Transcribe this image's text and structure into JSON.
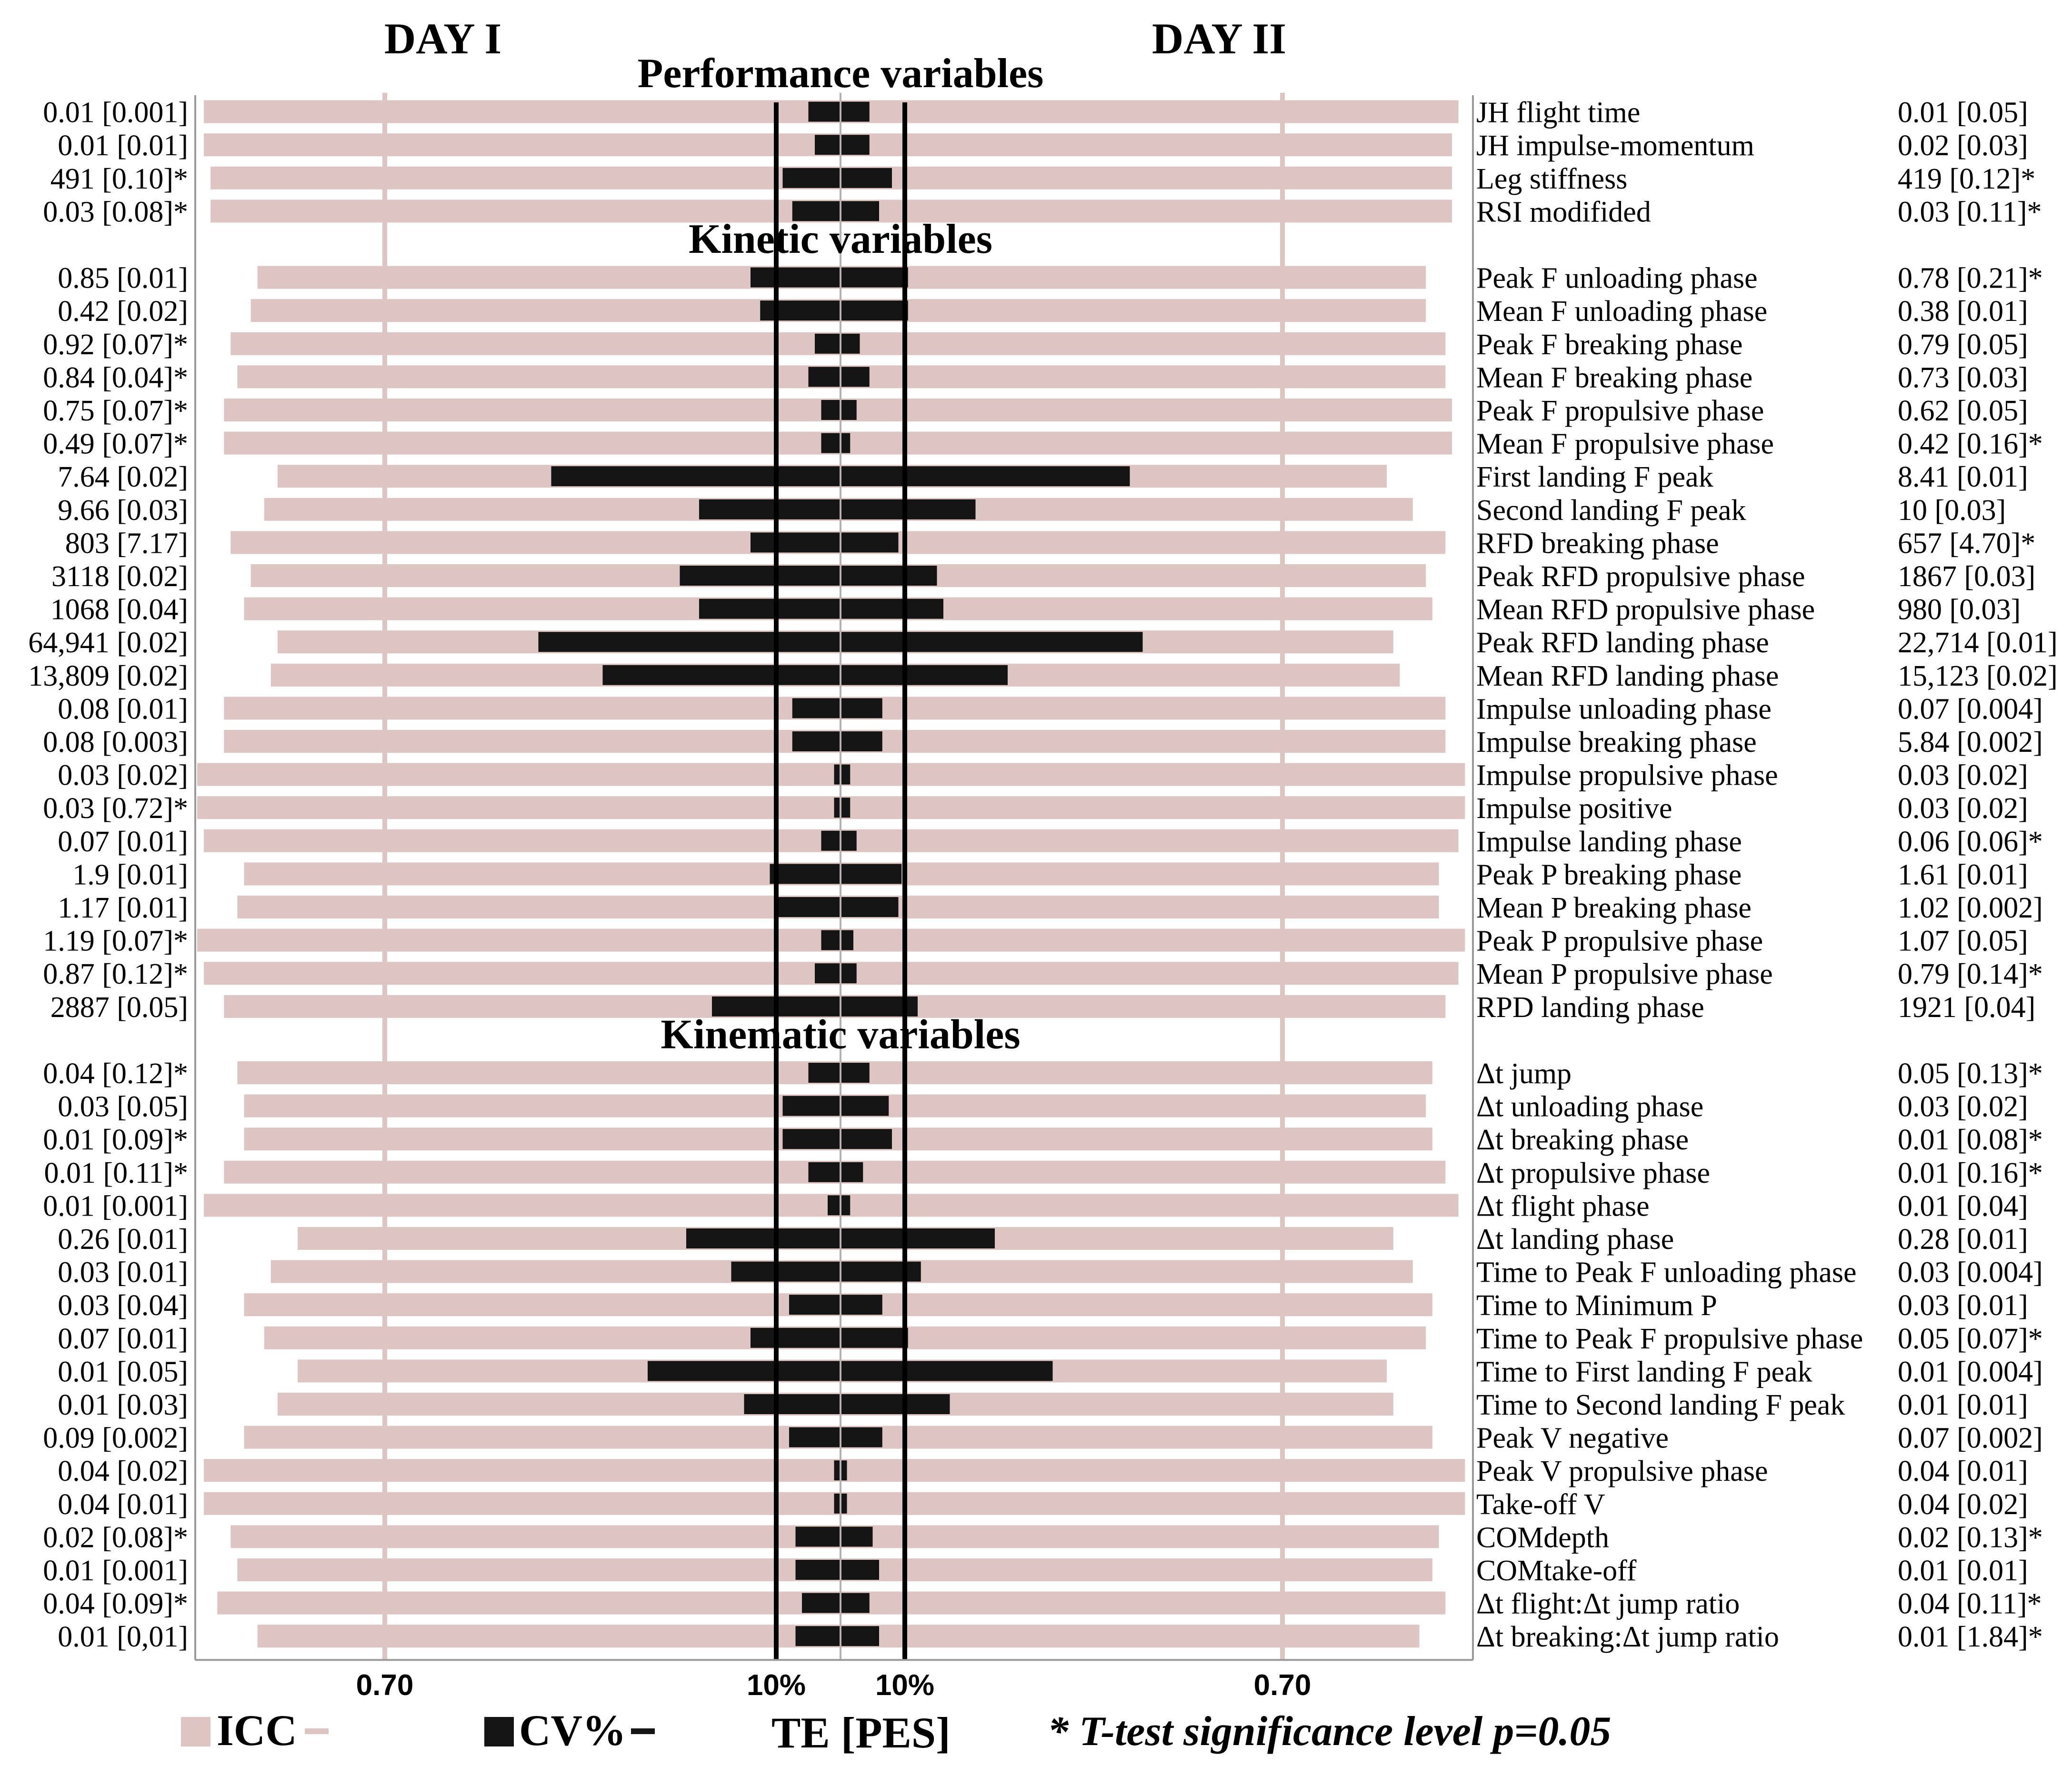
{
  "chart_data": {
    "type": "bar",
    "day_labels": [
      "DAY I",
      "DAY II"
    ],
    "tick_labels": {
      "icc_left": "0.70",
      "icc_right": "0.70",
      "cv_left": "10%",
      "cv_right": "10%"
    },
    "legend": {
      "icc": "ICC",
      "cv": "CV%",
      "te": "TE [PES]",
      "note": "* T-test significance level p=0.05"
    },
    "colors": {
      "icc": "#dcc5c3",
      "cv": "#141414",
      "axis": "#000000",
      "icc_ref": "#dcc5c3"
    },
    "scales": {
      "icc_ref": 0.7,
      "cv_ref_percent": 10
    },
    "groups": [
      {
        "title": "Performance variables",
        "rows": [
          {
            "label": "JH flight time",
            "day1_te": "0.01 [0.001]",
            "day2_te": "0.01 [0.05]",
            "icc1": 0.97,
            "icc2": 0.97,
            "cv1": 5,
            "cv2": 4.5
          },
          {
            "label": "JH impulse-momentum",
            "day1_te": "0.01 [0.01]",
            "day2_te": "0.02 [0.03]",
            "icc1": 0.97,
            "icc2": 0.96,
            "cv1": 4,
            "cv2": 4.5
          },
          {
            "label": "Leg stiffness",
            "day1_te": "491 [0.10]*",
            "day2_te": "419 [0.12]*",
            "icc1": 0.96,
            "icc2": 0.96,
            "cv1": 9,
            "cv2": 8
          },
          {
            "label": "RSI modifided",
            "day1_te": "0.03 [0.08]*",
            "day2_te": "0.03 [0.11]*",
            "icc1": 0.96,
            "icc2": 0.96,
            "cv1": 7.5,
            "cv2": 6
          }
        ]
      },
      {
        "title": "Kinetic variables",
        "rows": [
          {
            "label": "Peak F unloading phase",
            "day1_te": "0.85 [0.01]",
            "day2_te": "0.78 [0.21]*",
            "icc1": 0.89,
            "icc2": 0.92,
            "cv1": 14,
            "cv2": 10.5
          },
          {
            "label": "Mean F unloading phase",
            "day1_te": "0.42 [0.02]",
            "day2_te": "0.38 [0.01]",
            "icc1": 0.9,
            "icc2": 0.92,
            "cv1": 12.5,
            "cv2": 10.5
          },
          {
            "label": "Peak F breaking phase",
            "day1_te": "0.92 [0.07]*",
            "day2_te": "0.79 [0.05]",
            "icc1": 0.93,
            "icc2": 0.95,
            "cv1": 4,
            "cv2": 3
          },
          {
            "label": "Mean F breaking phase",
            "day1_te": "0.84 [0.04]*",
            "day2_te": "0.73 [0.03]",
            "icc1": 0.92,
            "icc2": 0.95,
            "cv1": 5,
            "cv2": 4.5
          },
          {
            "label": "Peak F propulsive phase",
            "day1_te": "0.75 [0.07]*",
            "day2_te": "0.62 [0.05]",
            "icc1": 0.94,
            "icc2": 0.96,
            "cv1": 3,
            "cv2": 2.5
          },
          {
            "label": "Mean F propulsive phase",
            "day1_te": "0.49 [0.07]*",
            "day2_te": "0.42 [0.16]*",
            "icc1": 0.94,
            "icc2": 0.96,
            "cv1": 3,
            "cv2": 1.5
          },
          {
            "label": "First landing F peak",
            "day1_te": "7.64 [0.02]",
            "day2_te": "8.41 [0.01]",
            "icc1": 0.86,
            "icc2": 0.86,
            "cv1": 45,
            "cv2": 45
          },
          {
            "label": "Second landing F peak",
            "day1_te": "9.66 [0.03]",
            "day2_te": "10 [0.03]",
            "icc1": 0.88,
            "icc2": 0.9,
            "cv1": 22,
            "cv2": 21
          },
          {
            "label": "RFD breaking phase",
            "day1_te": "803 [7.17]",
            "day2_te": "657 [4.70]*",
            "icc1": 0.93,
            "icc2": 0.95,
            "cv1": 14,
            "cv2": 9
          },
          {
            "label": "Peak RFD propulsive phase",
            "day1_te": "3118 [0.02]",
            "day2_te": "1867 [0.03]",
            "icc1": 0.9,
            "icc2": 0.92,
            "cv1": 25,
            "cv2": 15
          },
          {
            "label": "Mean RFD propulsive phase",
            "day1_te": "1068 [0.04]",
            "day2_te": "980 [0.03]",
            "icc1": 0.91,
            "icc2": 0.93,
            "cv1": 22,
            "cv2": 16
          },
          {
            "label": "Peak RFD landing phase",
            "day1_te": "64,941 [0.02]",
            "day2_te": "22,714 [0.01]",
            "icc1": 0.86,
            "icc2": 0.87,
            "cv1": 47,
            "cv2": 47
          },
          {
            "label": "Mean RFD landing phase",
            "day1_te": "13,809 [0.02]",
            "day2_te": "15,123 [0.02]",
            "icc1": 0.87,
            "icc2": 0.88,
            "cv1": 37,
            "cv2": 26
          },
          {
            "label": "Impulse unloading phase",
            "day1_te": "0.08 [0.01]",
            "day2_te": "0.07 [0.004]",
            "icc1": 0.94,
            "icc2": 0.95,
            "cv1": 7.5,
            "cv2": 6.5
          },
          {
            "label": "Impulse breaking phase",
            "day1_te": "0.08 [0.003]",
            "day2_te": "5.84 [0.002]",
            "icc1": 0.94,
            "icc2": 0.95,
            "cv1": 7.5,
            "cv2": 6.5
          },
          {
            "label": "Impulse propulsive phase",
            "day1_te": "0.03 [0.02]",
            "day2_te": "0.03 [0.02]",
            "icc1": 0.98,
            "icc2": 0.98,
            "cv1": 1,
            "cv2": 1.5
          },
          {
            "label": "Impulse positive",
            "day1_te": "0.03 [0.72]*",
            "day2_te": "0.03 [0.02]",
            "icc1": 0.98,
            "icc2": 0.98,
            "cv1": 1,
            "cv2": 1.5
          },
          {
            "label": "Impulse landing phase",
            "day1_te": "0.07 [0.01]",
            "day2_te": "0.06 [0.06]*",
            "icc1": 0.97,
            "icc2": 0.97,
            "cv1": 3,
            "cv2": 2.5
          },
          {
            "label": "Peak P breaking phase",
            "day1_te": "1.9 [0.01]",
            "day2_te": "1.61 [0.01]",
            "icc1": 0.91,
            "icc2": 0.94,
            "cv1": 11,
            "cv2": 9.5
          },
          {
            "label": "Mean P breaking phase",
            "day1_te": "1.17 [0.01]",
            "day2_te": "1.02 [0.002]",
            "icc1": 0.92,
            "icc2": 0.94,
            "cv1": 10,
            "cv2": 9
          },
          {
            "label": "Peak P propulsive phase",
            "day1_te": "1.19 [0.07]*",
            "day2_te": "1.07 [0.05]",
            "icc1": 0.98,
            "icc2": 0.98,
            "cv1": 3,
            "cv2": 2
          },
          {
            "label": "Mean P propulsive phase",
            "day1_te": "0.87 [0.12]*",
            "day2_te": "0.79 [0.14]*",
            "icc1": 0.97,
            "icc2": 0.97,
            "cv1": 4,
            "cv2": 2.5
          },
          {
            "label": "RPD landing phase",
            "day1_te": "2887 [0.05]",
            "day2_te": "1921 [0.04]",
            "icc1": 0.94,
            "icc2": 0.95,
            "cv1": 20,
            "cv2": 12
          }
        ]
      },
      {
        "title": "Kinematic variables",
        "rows": [
          {
            "label": "Δt jump",
            "day1_te": "0.04 [0.12]*",
            "day2_te": "0.05 [0.13]*",
            "icc1": 0.92,
            "icc2": 0.93,
            "cv1": 5,
            "cv2": 4.5
          },
          {
            "label": "Δt unloading phase",
            "day1_te": "0.03 [0.05]",
            "day2_te": "0.03 [0.02]",
            "icc1": 0.91,
            "icc2": 0.92,
            "cv1": 9,
            "cv2": 7.5
          },
          {
            "label": "Δt breaking phase",
            "day1_te": "0.01 [0.09]*",
            "day2_te": "0.01 [0.08]*",
            "icc1": 0.91,
            "icc2": 0.93,
            "cv1": 9,
            "cv2": 8
          },
          {
            "label": "Δt propulsive phase",
            "day1_te": "0.01 [0.11]*",
            "day2_te": "0.01 [0.16]*",
            "icc1": 0.94,
            "icc2": 0.95,
            "cv1": 5,
            "cv2": 3.5
          },
          {
            "label": "Δt flight phase",
            "day1_te": "0.01 [0.001]",
            "day2_te": "0.01 [0.04]",
            "icc1": 0.97,
            "icc2": 0.97,
            "cv1": 2,
            "cv2": 1.5
          },
          {
            "label": "Δt landing phase",
            "day1_te": "0.26 [0.01]",
            "day2_te": "0.28 [0.01]",
            "icc1": 0.83,
            "icc2": 0.87,
            "cv1": 24,
            "cv2": 24
          },
          {
            "label": "Time to Peak F unloading phase",
            "day1_te": "0.03 [0.01]",
            "day2_te": "0.03 [0.004]",
            "icc1": 0.87,
            "icc2": 0.9,
            "cv1": 17,
            "cv2": 12.5
          },
          {
            "label": "Time to Minimum P",
            "day1_te": "0.03 [0.04]",
            "day2_te": "0.03 [0.01]",
            "icc1": 0.91,
            "icc2": 0.93,
            "cv1": 8,
            "cv2": 6.5
          },
          {
            "label": "Time to Peak F propulsive phase",
            "day1_te": "0.07 [0.01]",
            "day2_te": "0.05 [0.07]*",
            "icc1": 0.88,
            "icc2": 0.92,
            "cv1": 14,
            "cv2": 10.5
          },
          {
            "label": "Time to First landing F peak",
            "day1_te": "0.01 [0.05]",
            "day2_te": "0.01 [0.004]",
            "icc1": 0.83,
            "icc2": 0.86,
            "cv1": 30,
            "cv2": 33
          },
          {
            "label": "Time to Second landing F peak",
            "day1_te": "0.01 [0.03]",
            "day2_te": "0.01 [0.01]",
            "icc1": 0.86,
            "icc2": 0.87,
            "cv1": 15,
            "cv2": 17
          },
          {
            "label": "Peak V negative",
            "day1_te": "0.09 [0.002]",
            "day2_te": "0.07 [0.002]",
            "icc1": 0.91,
            "icc2": 0.93,
            "cv1": 8,
            "cv2": 6.5
          },
          {
            "label": "Peak V propulsive phase",
            "day1_te": "0.04 [0.02]",
            "day2_te": "0.04 [0.01]",
            "icc1": 0.97,
            "icc2": 0.98,
            "cv1": 1,
            "cv2": 1
          },
          {
            "label": "Take-off V",
            "day1_te": "0.04 [0.01]",
            "day2_te": "0.04 [0.02]",
            "icc1": 0.97,
            "icc2": 0.98,
            "cv1": 1,
            "cv2": 1
          },
          {
            "label": "COMdepth",
            "day1_te": "0.02 [0.08]*",
            "day2_te": "0.02 [0.13]*",
            "icc1": 0.93,
            "icc2": 0.94,
            "cv1": 7,
            "cv2": 5
          },
          {
            "label": "COMtake-off",
            "day1_te": "0.01 [0.001]",
            "day2_te": "0.01 [0.01]",
            "icc1": 0.92,
            "icc2": 0.93,
            "cv1": 7,
            "cv2": 6
          },
          {
            "label": "Δt flight:Δt jump ratio",
            "day1_te": "0.04 [0.09]*",
            "day2_te": "0.04 [0.11]*",
            "icc1": 0.95,
            "icc2": 0.95,
            "cv1": 6,
            "cv2": 4.5
          },
          {
            "label": "Δt breaking:Δt jump ratio",
            "day1_te": "0.01 [0,01]",
            "day2_te": "0.01 [1.84]*",
            "icc1": 0.89,
            "icc2": 0.91,
            "cv1": 7,
            "cv2": 6
          }
        ]
      }
    ]
  }
}
